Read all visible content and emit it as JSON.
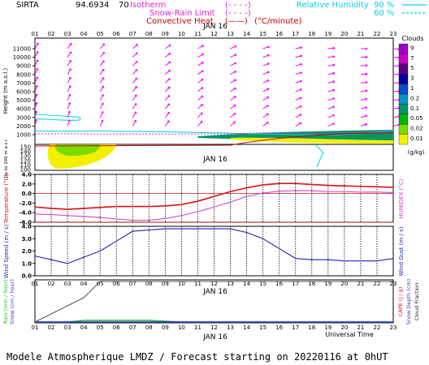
{
  "header": {
    "station": "SIRTA",
    "coords": "94.6934",
    "coords_suffix": "70",
    "legend_top": [
      {
        "label": "Isotherm",
        "line": "(- - - -)",
        "color": "#e020e0"
      },
      {
        "label": "Snow-Rain Limit",
        "line": "(- - - -)",
        "color": "#e020e0"
      },
      {
        "label": "Convective Heat",
        "line": "(——)",
        "unit": "(°C/minute)",
        "color": "#cc0000"
      }
    ],
    "humidity_label": "Relative Humidity",
    "humidity_values": [
      "90 %",
      "60 %"
    ],
    "humidity_color": "#00d0e0"
  },
  "footer": {
    "title": "Modele Atmospherique LMDZ / Forecast starting on 20220116 at 0hUT",
    "xlabel": "Universal Time"
  },
  "colors": {
    "temperature": "#dd1111",
    "humidex": "#cc44cc",
    "wind": "#2222bb",
    "rain": "#22bb22",
    "snow": "#3333dd",
    "cape": "#dd1111",
    "snowdepth": "#3333dd",
    "cloudfrac": "#222222",
    "wind_arrow": "#ff00ff",
    "frame": "#000000"
  },
  "chart_data": [
    {
      "type": "heatmap",
      "panel": "Cloud cross-section",
      "date_label": "JAN 16",
      "hours": [
        "01",
        "02",
        "03",
        "04",
        "05",
        "06",
        "07",
        "08",
        "09",
        "10",
        "11",
        "12",
        "13",
        "14",
        "15",
        "16",
        "17",
        "18",
        "19",
        "20",
        "21",
        "22",
        "23"
      ],
      "ylabel": "Height (m a.s.l.)",
      "yticks": [
        1000,
        2000,
        3000,
        4000,
        5000,
        6000,
        7000,
        8000,
        9000,
        10000,
        11000
      ],
      "ylabel_low": "Up to 200 m a.s.l.",
      "yticks_low": [
        150,
        140,
        130,
        120,
        110,
        100
      ],
      "colorbar_title": "Clouds",
      "colorbar_unit": "(g/kg)",
      "colorbar_labels": [
        "9",
        "7",
        "5",
        "3",
        "1",
        "0.2",
        "0.1",
        "0.05",
        "0.02",
        "0.01"
      ],
      "colorbar_colors": [
        "#a000c8",
        "#c800c8",
        "#5a0082",
        "#0000a0",
        "#0050c8",
        "#0096c8",
        "#009664",
        "#00b400",
        "#78dc00",
        "#f0f000"
      ],
      "low_cloud_layer_m": 1000,
      "wind_arrow_rows_m": [
        11000,
        10000,
        9000,
        8000,
        7000,
        6000,
        5000,
        4000,
        3000,
        2000
      ]
    },
    {
      "type": "line",
      "panel": "Temperature and Humidex",
      "x": [
        "01",
        "02",
        "03",
        "04",
        "05",
        "06",
        "07",
        "08",
        "09",
        "10",
        "11",
        "12",
        "13",
        "14",
        "15",
        "16",
        "17",
        "18",
        "19",
        "20",
        "21",
        "22",
        "23"
      ],
      "ylabel_left": "Temperature (°C)",
      "ylabel_right": "HUMIDEX (°C)",
      "yticks": [
        "4.0",
        "2.0",
        "0.0",
        "-2.0",
        "-4.0",
        "-6.0"
      ],
      "ylim": [
        -6,
        4
      ],
      "series": [
        {
          "key": "temperature",
          "values": [
            -2.8,
            -3.1,
            -3.3,
            -3.1,
            -2.9,
            -2.7,
            -2.7,
            -2.7,
            -2.6,
            -2.3,
            -1.6,
            -0.6,
            0.4,
            1.2,
            1.8,
            2.1,
            2.1,
            1.9,
            1.7,
            1.6,
            1.5,
            1.4,
            1.3
          ]
        },
        {
          "key": "humidex",
          "values": [
            -4.3,
            -4.4,
            -4.6,
            -4.8,
            -5.0,
            -5.3,
            -5.6,
            -5.6,
            -5.2,
            -4.6,
            -3.8,
            -2.8,
            -1.8,
            -0.6,
            0.1,
            0.5,
            0.6,
            0.6,
            0.4,
            0.4,
            0.3,
            0.3,
            0.2
          ]
        }
      ]
    },
    {
      "type": "line",
      "panel": "Wind",
      "x": [
        "01",
        "02",
        "03",
        "04",
        "05",
        "06",
        "07",
        "08",
        "09",
        "10",
        "11",
        "12",
        "13",
        "14",
        "15",
        "16",
        "17",
        "18",
        "19",
        "20",
        "21",
        "22",
        "23"
      ],
      "ylabel_left": "Wind Speed (m / s)",
      "ylabel_right": "Wind Gust (m / s)",
      "yticks": [
        "4.0",
        "3.0",
        "2.0",
        "1.0",
        "0.0"
      ],
      "ylim": [
        0,
        4
      ],
      "series": [
        {
          "key": "wind",
          "values": [
            1.6,
            1.3,
            1.0,
            1.5,
            2.0,
            2.8,
            3.6,
            3.7,
            3.8,
            3.8,
            3.8,
            3.8,
            3.8,
            3.5,
            3.0,
            2.2,
            1.4,
            1.3,
            1.3,
            1.2,
            1.2,
            1.2,
            1.4
          ]
        }
      ]
    },
    {
      "type": "line",
      "panel": "Precipitation",
      "date_label": "JAN 16",
      "x": [
        "01",
        "02",
        "03",
        "04",
        "05",
        "06",
        "07",
        "08",
        "09",
        "10",
        "11",
        "12",
        "13",
        "14",
        "15",
        "16",
        "17",
        "18",
        "19",
        "20",
        "21",
        "22",
        "23"
      ],
      "ylabel_left": [
        "Rain (mm / hour)",
        "Snow (cm / hour)"
      ],
      "ylabel_right": [
        "CAPE (J / g)",
        "Snow Depth (cm)",
        "Cloud Fraction"
      ],
      "series": [
        {
          "key": "cloudfrac",
          "values": [
            0.0,
            0.2,
            0.4,
            0.6,
            1.0,
            1.0,
            1.0,
            1.0,
            1.0,
            1.0,
            1.0,
            1.0,
            1.0,
            1.0,
            1.0,
            1.0,
            1.0,
            1.0,
            1.0,
            1.0,
            1.0,
            1.0,
            1.0
          ]
        },
        {
          "key": "rain",
          "values": [
            0,
            0,
            0,
            0.04,
            0.04,
            0.04,
            0.04,
            0.04,
            0.02,
            0,
            0,
            0,
            0,
            0,
            0,
            0,
            0,
            0,
            0,
            0,
            0,
            0,
            0
          ]
        },
        {
          "key": "snow",
          "values": [
            0,
            0,
            0,
            0,
            0,
            0,
            0,
            0,
            0,
            0,
            0,
            0,
            0,
            0,
            0,
            0,
            0,
            0,
            0,
            0,
            0,
            0,
            0
          ]
        }
      ]
    }
  ]
}
